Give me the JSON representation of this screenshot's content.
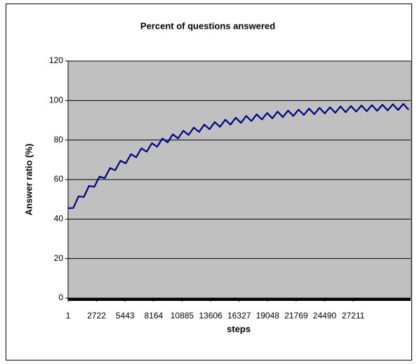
{
  "chart_data": {
    "type": "line",
    "title": "Percent of questions answered",
    "x_label": "steps",
    "y_label": "Answer ratio (%)",
    "x": [
      1,
      500,
      1000,
      1500,
      2000,
      2500,
      3000,
      3500,
      4000,
      4500,
      5000,
      5500,
      6000,
      6500,
      7000,
      7500,
      8000,
      8500,
      9000,
      9500,
      10000,
      10500,
      11000,
      11500,
      12000,
      12500,
      13000,
      13500,
      14000,
      14500,
      15000,
      15500,
      16000,
      16500,
      17000,
      17500,
      18000,
      18500,
      19000,
      19500,
      20000,
      20500,
      21000,
      21500,
      22000,
      22500,
      23000,
      23500,
      24000,
      24500,
      25000,
      25500,
      26000,
      26500,
      27000,
      27500,
      28000,
      28500,
      29000,
      29500,
      30000,
      30500,
      31000,
      31500,
      32000,
      32500
    ],
    "series": [
      {
        "name": "Answer ratio",
        "color": "#000080",
        "values": [
          45.5,
          45.6,
          51.5,
          51.2,
          56.8,
          56.3,
          61.5,
          60.7,
          65.8,
          64.7,
          69.5,
          68.2,
          72.8,
          71.3,
          75.8,
          74.1,
          78.4,
          76.6,
          80.8,
          78.8,
          82.9,
          80.8,
          84.7,
          82.6,
          86.3,
          84.1,
          87.8,
          85.5,
          89.1,
          86.7,
          90.3,
          87.8,
          91.3,
          88.7,
          92.2,
          89.6,
          93.0,
          90.4,
          93.7,
          91.0,
          94.4,
          91.6,
          94.9,
          92.2,
          95.4,
          92.7,
          95.9,
          93.1,
          96.3,
          93.5,
          96.6,
          93.8,
          97.0,
          94.1,
          97.2,
          94.4,
          97.5,
          94.6,
          97.7,
          94.8,
          97.9,
          95.0,
          98.1,
          95.2,
          98.3,
          95.3
        ]
      }
    ],
    "xlim": [
      1,
      32700
    ],
    "xticks": [
      1,
      2722,
      5443,
      8164,
      10885,
      13606,
      16327,
      19048,
      21769,
      24490,
      27211
    ],
    "ylim": [
      0,
      120
    ],
    "yticks": [
      0,
      20,
      40,
      60,
      80,
      100,
      120
    ],
    "grid": true,
    "plot_background": "#c0c0c0"
  }
}
